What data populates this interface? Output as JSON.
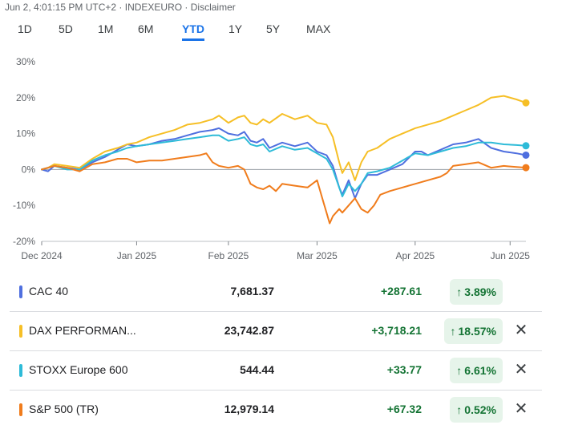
{
  "header": {
    "text": "Jun 2, 4:01:15 PM UTC+2 · INDEXEURO · Disclaimer"
  },
  "tabs": [
    {
      "label": "1D"
    },
    {
      "label": "5D"
    },
    {
      "label": "1M"
    },
    {
      "label": "6M"
    },
    {
      "label": "YTD",
      "active": true
    },
    {
      "label": "1Y"
    },
    {
      "label": "5Y"
    },
    {
      "label": "MAX"
    }
  ],
  "chart_data": {
    "type": "line",
    "title": "",
    "xlabel": "",
    "ylabel": "",
    "y_unit": "%",
    "ylim": [
      -20,
      30
    ],
    "yticks": [
      30,
      20,
      10,
      0,
      -10,
      -20
    ],
    "ytick_labels": [
      "30%",
      "20%",
      "10%",
      "0%",
      "-10%",
      "-20%"
    ],
    "xlim": [
      0,
      153
    ],
    "xticks": [
      {
        "t": 0,
        "label": "Dec 2024"
      },
      {
        "t": 30,
        "label": "Jan 2025"
      },
      {
        "t": 59,
        "label": "Feb 2025"
      },
      {
        "t": 87,
        "label": "Mar 2025"
      },
      {
        "t": 118,
        "label": "Apr 2025"
      },
      {
        "t": 148,
        "label": "Jun 2025"
      }
    ],
    "baseline": 0,
    "series": [
      {
        "name": "CAC 40",
        "color": "#4f6fdf",
        "points": [
          [
            0,
            0
          ],
          [
            2,
            -0.5
          ],
          [
            4,
            1
          ],
          [
            8,
            0.5
          ],
          [
            12,
            0
          ],
          [
            16,
            2
          ],
          [
            20,
            3.5
          ],
          [
            24,
            5.5
          ],
          [
            27,
            7
          ],
          [
            30,
            6.5
          ],
          [
            34,
            7
          ],
          [
            38,
            8
          ],
          [
            42,
            8.5
          ],
          [
            46,
            9.5
          ],
          [
            50,
            10.5
          ],
          [
            54,
            11
          ],
          [
            56,
            11.5
          ],
          [
            59,
            10
          ],
          [
            62,
            9.5
          ],
          [
            64,
            10.5
          ],
          [
            66,
            8
          ],
          [
            68,
            7.5
          ],
          [
            70,
            8.5
          ],
          [
            72,
            6
          ],
          [
            76,
            7.5
          ],
          [
            80,
            6.5
          ],
          [
            84,
            7.5
          ],
          [
            87,
            5
          ],
          [
            90,
            4
          ],
          [
            92,
            1
          ],
          [
            94,
            -5
          ],
          [
            95,
            -7
          ],
          [
            97,
            -3
          ],
          [
            99,
            -8
          ],
          [
            101,
            -4
          ],
          [
            103,
            -1.5
          ],
          [
            106,
            -1.5
          ],
          [
            110,
            0
          ],
          [
            114,
            1.5
          ],
          [
            118,
            5
          ],
          [
            120,
            5
          ],
          [
            122,
            4
          ],
          [
            126,
            5.5
          ],
          [
            130,
            7
          ],
          [
            134,
            7.5
          ],
          [
            138,
            8.5
          ],
          [
            142,
            6
          ],
          [
            146,
            5
          ],
          [
            150,
            4.5
          ],
          [
            153,
            4
          ]
        ]
      },
      {
        "name": "DAX PERFORMANCE-INDEX",
        "color": "#f6bf26",
        "points": [
          [
            0,
            0
          ],
          [
            2,
            0.5
          ],
          [
            4,
            1.5
          ],
          [
            8,
            1
          ],
          [
            12,
            0.5
          ],
          [
            16,
            3
          ],
          [
            20,
            5
          ],
          [
            24,
            6
          ],
          [
            27,
            7
          ],
          [
            30,
            7.5
          ],
          [
            34,
            9
          ],
          [
            38,
            10
          ],
          [
            42,
            11
          ],
          [
            46,
            12.5
          ],
          [
            50,
            13
          ],
          [
            54,
            14
          ],
          [
            56,
            15
          ],
          [
            59,
            13
          ],
          [
            62,
            14.5
          ],
          [
            64,
            15
          ],
          [
            66,
            13
          ],
          [
            68,
            12.5
          ],
          [
            70,
            14
          ],
          [
            72,
            13
          ],
          [
            76,
            15.5
          ],
          [
            80,
            14
          ],
          [
            84,
            15
          ],
          [
            87,
            13
          ],
          [
            90,
            12.5
          ],
          [
            92,
            9
          ],
          [
            94,
            2
          ],
          [
            95,
            -1
          ],
          [
            97,
            2
          ],
          [
            99,
            -3
          ],
          [
            101,
            2
          ],
          [
            103,
            5
          ],
          [
            106,
            6
          ],
          [
            110,
            8.5
          ],
          [
            114,
            10
          ],
          [
            118,
            11.5
          ],
          [
            122,
            12.5
          ],
          [
            126,
            13.5
          ],
          [
            130,
            15
          ],
          [
            134,
            16.5
          ],
          [
            138,
            18
          ],
          [
            142,
            20
          ],
          [
            146,
            20.5
          ],
          [
            150,
            19.5
          ],
          [
            153,
            18.57
          ]
        ]
      },
      {
        "name": "STOXX Europe 600",
        "color": "#2ebbd8",
        "points": [
          [
            0,
            0
          ],
          [
            2,
            0.5
          ],
          [
            4,
            1
          ],
          [
            8,
            0
          ],
          [
            12,
            0
          ],
          [
            16,
            2.5
          ],
          [
            20,
            4
          ],
          [
            24,
            5
          ],
          [
            27,
            6
          ],
          [
            30,
            6.5
          ],
          [
            34,
            7
          ],
          [
            38,
            7.5
          ],
          [
            42,
            8
          ],
          [
            46,
            8.5
          ],
          [
            50,
            9
          ],
          [
            54,
            9.5
          ],
          [
            56,
            9.5
          ],
          [
            59,
            8
          ],
          [
            62,
            8.5
          ],
          [
            64,
            9
          ],
          [
            66,
            7
          ],
          [
            68,
            6.5
          ],
          [
            70,
            7
          ],
          [
            72,
            5
          ],
          [
            76,
            6.5
          ],
          [
            80,
            5.5
          ],
          [
            84,
            6
          ],
          [
            87,
            4.5
          ],
          [
            90,
            3
          ],
          [
            92,
            0
          ],
          [
            94,
            -5
          ],
          [
            95,
            -7.5
          ],
          [
            97,
            -4
          ],
          [
            99,
            -6
          ],
          [
            101,
            -4
          ],
          [
            103,
            -1
          ],
          [
            106,
            -0.5
          ],
          [
            110,
            0.5
          ],
          [
            114,
            2.5
          ],
          [
            118,
            4.5
          ],
          [
            122,
            4
          ],
          [
            126,
            5
          ],
          [
            130,
            6
          ],
          [
            134,
            6.5
          ],
          [
            138,
            7.5
          ],
          [
            142,
            7.5
          ],
          [
            146,
            7
          ],
          [
            150,
            6.8
          ],
          [
            153,
            6.61
          ]
        ]
      },
      {
        "name": "S&P 500 (TR)",
        "color": "#f07c1c",
        "points": [
          [
            0,
            0
          ],
          [
            2,
            0.5
          ],
          [
            4,
            1
          ],
          [
            8,
            0.5
          ],
          [
            12,
            -0.5
          ],
          [
            16,
            1.5
          ],
          [
            20,
            2
          ],
          [
            24,
            3
          ],
          [
            27,
            3
          ],
          [
            30,
            2
          ],
          [
            34,
            2.5
          ],
          [
            38,
            2.5
          ],
          [
            42,
            3
          ],
          [
            46,
            3.5
          ],
          [
            50,
            4
          ],
          [
            52,
            4.5
          ],
          [
            54,
            2
          ],
          [
            56,
            1
          ],
          [
            59,
            0.5
          ],
          [
            62,
            1
          ],
          [
            64,
            0
          ],
          [
            66,
            -4
          ],
          [
            68,
            -5
          ],
          [
            70,
            -5.5
          ],
          [
            72,
            -4.5
          ],
          [
            74,
            -6
          ],
          [
            76,
            -4
          ],
          [
            80,
            -4.5
          ],
          [
            84,
            -5
          ],
          [
            87,
            -3
          ],
          [
            89,
            -9
          ],
          [
            90,
            -12
          ],
          [
            91,
            -15
          ],
          [
            92,
            -13
          ],
          [
            94,
            -11
          ],
          [
            95,
            -12
          ],
          [
            97,
            -10
          ],
          [
            99,
            -8
          ],
          [
            101,
            -11
          ],
          [
            103,
            -12
          ],
          [
            105,
            -10
          ],
          [
            107,
            -7
          ],
          [
            110,
            -6
          ],
          [
            114,
            -5
          ],
          [
            118,
            -4
          ],
          [
            122,
            -3
          ],
          [
            126,
            -2
          ],
          [
            128,
            -1
          ],
          [
            130,
            1
          ],
          [
            134,
            1.5
          ],
          [
            138,
            2
          ],
          [
            142,
            0.5
          ],
          [
            146,
            1
          ],
          [
            150,
            0.7
          ],
          [
            153,
            0.52
          ]
        ]
      }
    ]
  },
  "rows": [
    {
      "name": "CAC 40",
      "value": "7,681.37",
      "change": "+287.61",
      "pct": "3.89%",
      "arrow": "↑",
      "color": "#4f6fdf",
      "closable": false
    },
    {
      "name": "DAX PERFORMAN...",
      "value": "23,742.87",
      "change": "+3,718.21",
      "pct": "18.57%",
      "arrow": "↑",
      "color": "#f6bf26",
      "closable": true
    },
    {
      "name": "STOXX Europe 600",
      "value": "544.44",
      "change": "+33.77",
      "pct": "6.61%",
      "arrow": "↑",
      "color": "#2ebbd8",
      "closable": true
    },
    {
      "name": "S&P 500 (TR)",
      "value": "12,979.14",
      "change": "+67.32",
      "pct": "0.52%",
      "arrow": "↑",
      "color": "#f07c1c",
      "closable": true
    }
  ],
  "icons": {
    "close": "close-icon",
    "arrow": "arrow-up-icon"
  }
}
